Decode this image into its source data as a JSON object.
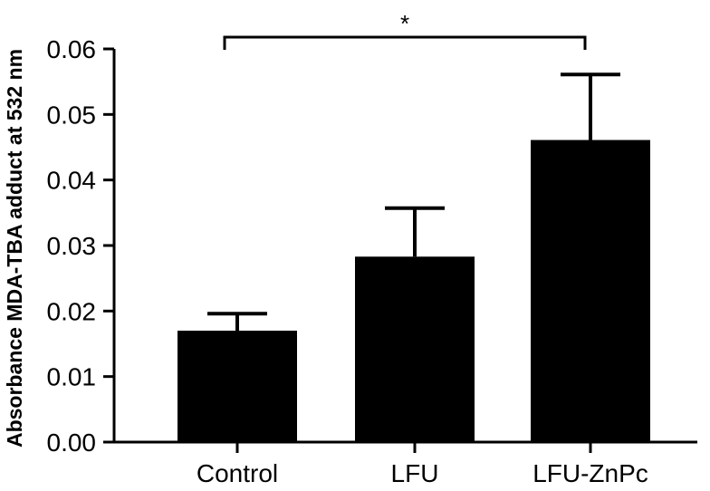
{
  "chart_data": {
    "type": "bar",
    "title": "",
    "xlabel": "",
    "ylabel": "Absorbance MDA-TBA adduct at 532 nm",
    "categories": [
      "Control",
      "LFU",
      "LFU-ZnPc"
    ],
    "values": [
      0.017,
      0.0283,
      0.0461
    ],
    "error_bars": [
      0.0026,
      0.0074,
      0.01
    ],
    "ylim": [
      0,
      0.06
    ],
    "yticks": [
      "0.00",
      "0.01",
      "0.02",
      "0.03",
      "0.04",
      "0.05",
      "0.06"
    ],
    "ytick_values": [
      0,
      0.01,
      0.02,
      0.03,
      0.04,
      0.05,
      0.06
    ],
    "grid": false,
    "bar_color": "#000000",
    "significance": {
      "from": "Control",
      "to": "LFU-ZnPc",
      "label": "*"
    }
  }
}
